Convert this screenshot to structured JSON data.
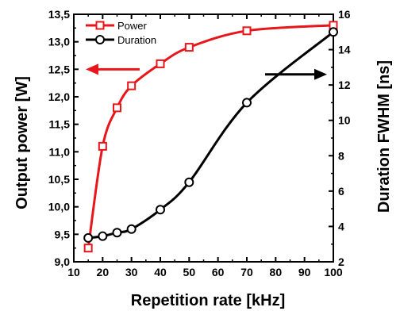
{
  "chart_data": {
    "type": "line",
    "xlabel": "Repetition rate  [kHz]",
    "ylabel_left": "Output power [W]",
    "ylabel_right": "Duration FWHM  [ns]",
    "xlim": [
      10,
      100
    ],
    "ylim_left": [
      9.0,
      13.5
    ],
    "ylim_right": [
      2,
      16
    ],
    "x_ticks": [
      "10",
      "20",
      "30",
      "40",
      "50",
      "60",
      "70",
      "80",
      "90",
      "100"
    ],
    "y_left_ticks": [
      "9,0",
      "9,5",
      "10,0",
      "10,5",
      "11,0",
      "11,5",
      "12,0",
      "12,5",
      "13,0",
      "13,5"
    ],
    "y_right_ticks": [
      "2",
      "4",
      "6",
      "8",
      "10",
      "12",
      "14",
      "16"
    ],
    "grid": false,
    "legend_position": "top-left",
    "series": [
      {
        "name": "Power",
        "axis": "left",
        "color": "#e8161b",
        "marker": "square",
        "x": [
          15,
          20,
          25,
          30,
          40,
          50,
          70,
          100
        ],
        "values": [
          9.25,
          11.1,
          11.8,
          12.2,
          12.6,
          12.9,
          13.2,
          13.3
        ]
      },
      {
        "name": "Duration",
        "axis": "right",
        "color": "#000000",
        "marker": "circle",
        "x": [
          15,
          20,
          25,
          30,
          40,
          50,
          70,
          100
        ],
        "values": [
          3.35,
          3.45,
          3.65,
          3.85,
          4.95,
          6.5,
          11.0,
          15.0
        ]
      }
    ]
  }
}
